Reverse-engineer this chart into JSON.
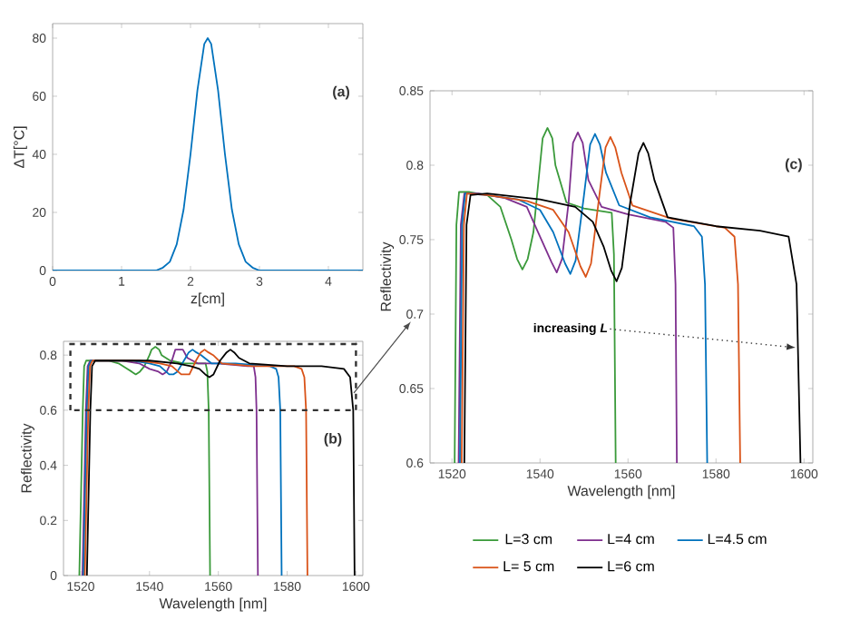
{
  "chart_data": [
    {
      "type": "line",
      "xlabel": "z[cm]",
      "ylabel": "ΔT[°C]",
      "xlim": [
        0,
        4.5
      ],
      "ylim": [
        0,
        85
      ],
      "xticks": [
        0,
        1,
        2,
        3,
        4
      ],
      "yticks": [
        0,
        20,
        40,
        60,
        80
      ],
      "grid": false,
      "annotations": [
        "(a)"
      ],
      "x": [
        0,
        1.4,
        1.5,
        1.6,
        1.7,
        1.8,
        1.9,
        2.0,
        2.1,
        2.2,
        2.25,
        2.3,
        2.4,
        2.5,
        2.6,
        2.7,
        2.8,
        2.9,
        3.0,
        3.1,
        4.5
      ],
      "series": [
        {
          "color": "#0072bd",
          "values": [
            0,
            0,
            0,
            1,
            3,
            9,
            21,
            40,
            62,
            78,
            80,
            78,
            62,
            40,
            21,
            9,
            3,
            1,
            0,
            0,
            0
          ]
        }
      ]
    },
    {
      "type": "line",
      "xlabel": "Wavelength [nm]",
      "ylabel": "Reflectivity",
      "xlim": [
        1515,
        1602
      ],
      "ylim": [
        0,
        0.85
      ],
      "xticks": [
        1520,
        1540,
        1560,
        1580,
        1600
      ],
      "yticks": [
        0,
        0.2,
        0.4,
        0.6,
        0.8
      ],
      "grid": false,
      "annotations": [
        "(b)"
      ],
      "series": [
        {
          "color": "#3a9a3a",
          "x": [
            1519.6,
            1520.6,
            1521.0,
            1521.6,
            1524,
            1528,
            1531,
            1533.5,
            1534.8,
            1536,
            1537.2,
            1538.5,
            1540,
            1540.6,
            1541.7,
            1542.8,
            1543.5,
            1546,
            1550,
            1556.3,
            1556.8,
            1557.2,
            1557.6
          ],
          "values": [
            0,
            0.6,
            0.76,
            0.78,
            0.78,
            0.78,
            0.77,
            0.75,
            0.74,
            0.73,
            0.74,
            0.76,
            0.8,
            0.82,
            0.83,
            0.82,
            0.8,
            0.78,
            0.77,
            0.77,
            0.74,
            0.6,
            0
          ]
        },
        {
          "color": "#7e2f8e",
          "x": [
            1520.5,
            1521.5,
            1522,
            1522.8,
            1526,
            1532,
            1537,
            1540,
            1542.6,
            1543.8,
            1545,
            1546.5,
            1547.5,
            1548.6,
            1549.7,
            1551,
            1554,
            1560,
            1568.5,
            1570.3,
            1570.8,
            1571.1,
            1571.5
          ],
          "values": [
            0,
            0.6,
            0.76,
            0.78,
            0.78,
            0.78,
            0.77,
            0.75,
            0.74,
            0.73,
            0.74,
            0.78,
            0.82,
            0.82,
            0.82,
            0.79,
            0.77,
            0.77,
            0.76,
            0.76,
            0.72,
            0.6,
            0
          ]
        },
        {
          "color": "#0072bd",
          "x": [
            1520.8,
            1521.8,
            1522.3,
            1523,
            1528,
            1535,
            1540,
            1543,
            1545.7,
            1546.9,
            1548.1,
            1550,
            1551.4,
            1552.5,
            1553.6,
            1555,
            1558,
            1565,
            1575,
            1576.8,
            1577.5,
            1578,
            1578.4
          ],
          "values": [
            0,
            0.6,
            0.76,
            0.78,
            0.78,
            0.78,
            0.77,
            0.76,
            0.73,
            0.73,
            0.74,
            0.78,
            0.81,
            0.82,
            0.81,
            0.8,
            0.77,
            0.77,
            0.76,
            0.75,
            0.72,
            0.6,
            0
          ]
        },
        {
          "color": "#d95319",
          "x": [
            1521.2,
            1522.2,
            1522.7,
            1523.4,
            1528,
            1537,
            1543,
            1546.5,
            1549.2,
            1550.4,
            1551.6,
            1553.5,
            1554.9,
            1556,
            1557.1,
            1558.5,
            1561,
            1570,
            1582,
            1584.2,
            1585,
            1585.5,
            1585.9
          ],
          "values": [
            0,
            0.6,
            0.76,
            0.78,
            0.78,
            0.78,
            0.77,
            0.76,
            0.73,
            0.73,
            0.73,
            0.78,
            0.81,
            0.82,
            0.81,
            0.8,
            0.77,
            0.76,
            0.76,
            0.75,
            0.72,
            0.6,
            0
          ]
        },
        {
          "color": "#000000",
          "x": [
            1521.8,
            1522.8,
            1523.3,
            1524.2,
            1528,
            1540,
            1548,
            1552,
            1554.5,
            1556.2,
            1557.4,
            1558.6,
            1560.5,
            1562.4,
            1563.5,
            1564.6,
            1566,
            1569,
            1580,
            1590,
            1596.5,
            1598.3,
            1599.2,
            1599.6
          ],
          "values": [
            0,
            0.6,
            0.76,
            0.78,
            0.78,
            0.78,
            0.77,
            0.76,
            0.75,
            0.73,
            0.72,
            0.73,
            0.78,
            0.81,
            0.82,
            0.81,
            0.79,
            0.77,
            0.76,
            0.76,
            0.75,
            0.72,
            0.6,
            0
          ]
        }
      ]
    },
    {
      "type": "line",
      "xlabel": "Wavelength [nm]",
      "ylabel": "Reflectivity",
      "xlim": [
        1515,
        1602
      ],
      "ylim": [
        0.6,
        0.85
      ],
      "xticks": [
        1520,
        1540,
        1560,
        1580,
        1600
      ],
      "yticks": [
        0.6,
        0.65,
        0.7,
        0.75,
        0.8,
        0.85
      ],
      "grid": false,
      "legend": "bottom",
      "annotations": [
        "(c)",
        "increasing *L*"
      ],
      "series": [
        {
          "name": "L=3 cm",
          "color": "#3a9a3a",
          "x": [
            1520.6,
            1521.0,
            1521.6,
            1524,
            1528,
            1531,
            1533.5,
            1534.8,
            1536,
            1537.2,
            1538.5,
            1540,
            1540.6,
            1541.7,
            1542.8,
            1543.5,
            1546,
            1550,
            1556.3,
            1556.8,
            1557.2
          ],
          "values": [
            0.6,
            0.76,
            0.782,
            0.782,
            0.78,
            0.772,
            0.75,
            0.737,
            0.73,
            0.737,
            0.755,
            0.8,
            0.818,
            0.825,
            0.818,
            0.8,
            0.775,
            0.771,
            0.768,
            0.74,
            0.6
          ]
        },
        {
          "name": "L=4 cm",
          "color": "#7e2f8e",
          "x": [
            1521.5,
            1522,
            1522.8,
            1526,
            1532,
            1537,
            1540,
            1542.6,
            1543.8,
            1545,
            1546.5,
            1547.5,
            1548.6,
            1549.7,
            1551,
            1554,
            1560,
            1568.5,
            1570.3,
            1570.8,
            1571.1
          ],
          "values": [
            0.6,
            0.76,
            0.781,
            0.781,
            0.778,
            0.772,
            0.752,
            0.735,
            0.728,
            0.737,
            0.775,
            0.815,
            0.822,
            0.815,
            0.79,
            0.772,
            0.767,
            0.762,
            0.758,
            0.72,
            0.6
          ]
        },
        {
          "name": "L=4.5 cm",
          "color": "#0072bd",
          "x": [
            1521.8,
            1522.3,
            1523,
            1528,
            1535,
            1540,
            1543,
            1545.7,
            1546.9,
            1548.1,
            1550,
            1551.4,
            1552.5,
            1553.6,
            1555,
            1558,
            1565,
            1575,
            1576.8,
            1577.5,
            1578
          ],
          "values": [
            0.6,
            0.76,
            0.781,
            0.78,
            0.777,
            0.77,
            0.755,
            0.734,
            0.727,
            0.736,
            0.78,
            0.814,
            0.821,
            0.814,
            0.795,
            0.773,
            0.765,
            0.759,
            0.752,
            0.72,
            0.6
          ]
        },
        {
          "name": "L= 5 cm",
          "color": "#d95319",
          "x": [
            1522.2,
            1522.7,
            1523.4,
            1528,
            1537,
            1543,
            1546.5,
            1549.2,
            1550.4,
            1551.6,
            1553.5,
            1554.9,
            1556,
            1557.1,
            1558.5,
            1561,
            1570,
            1582,
            1584.2,
            1585,
            1585.5
          ],
          "values": [
            0.6,
            0.76,
            0.781,
            0.78,
            0.776,
            0.77,
            0.755,
            0.732,
            0.725,
            0.734,
            0.78,
            0.812,
            0.819,
            0.812,
            0.795,
            0.773,
            0.764,
            0.758,
            0.752,
            0.72,
            0.6
          ]
        },
        {
          "name": "L=6 cm",
          "color": "#000000",
          "x": [
            1522.8,
            1523.3,
            1524.2,
            1528,
            1540,
            1548,
            1552,
            1554.5,
            1556.2,
            1557.4,
            1558.6,
            1560.5,
            1562.4,
            1563.5,
            1564.6,
            1566,
            1569,
            1580,
            1590,
            1596.5,
            1598.3,
            1599.2
          ],
          "values": [
            0.6,
            0.76,
            0.78,
            0.781,
            0.777,
            0.772,
            0.762,
            0.745,
            0.729,
            0.722,
            0.731,
            0.775,
            0.808,
            0.815,
            0.808,
            0.79,
            0.765,
            0.759,
            0.756,
            0.752,
            0.72,
            0.6
          ]
        }
      ]
    }
  ]
}
